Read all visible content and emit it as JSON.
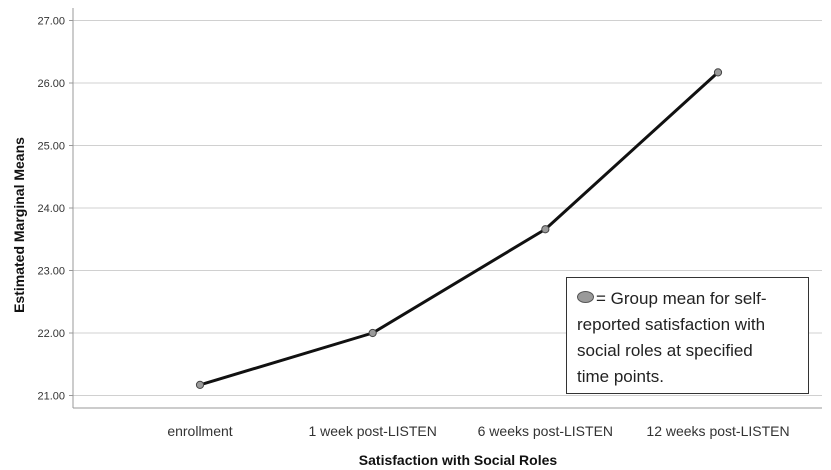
{
  "chart_data": {
    "type": "line",
    "categories": [
      "enrollment",
      "1 week post-LISTEN",
      "6 weeks post-LISTEN",
      "12 weeks post-LISTEN"
    ],
    "values": [
      21.17,
      22.0,
      23.66,
      26.17
    ],
    "xlabel": "Satisfaction with Social Roles",
    "ylabel": "Estimated Marginal Means",
    "ylim": [
      20.8,
      27.2
    ],
    "yticks": [
      "21.00",
      "22.00",
      "23.00",
      "24.00",
      "25.00",
      "26.00",
      "27.00"
    ],
    "grid": true,
    "colors": {
      "line": "#111111",
      "marker": "#9a9a9a",
      "grid": "#d0d0d0"
    }
  },
  "legend": {
    "lines": [
      "= Group mean for self-",
      "reported satisfaction with",
      "social roles at specified",
      "time points."
    ],
    "marker_icon": "gray-ellipse-marker-icon"
  }
}
